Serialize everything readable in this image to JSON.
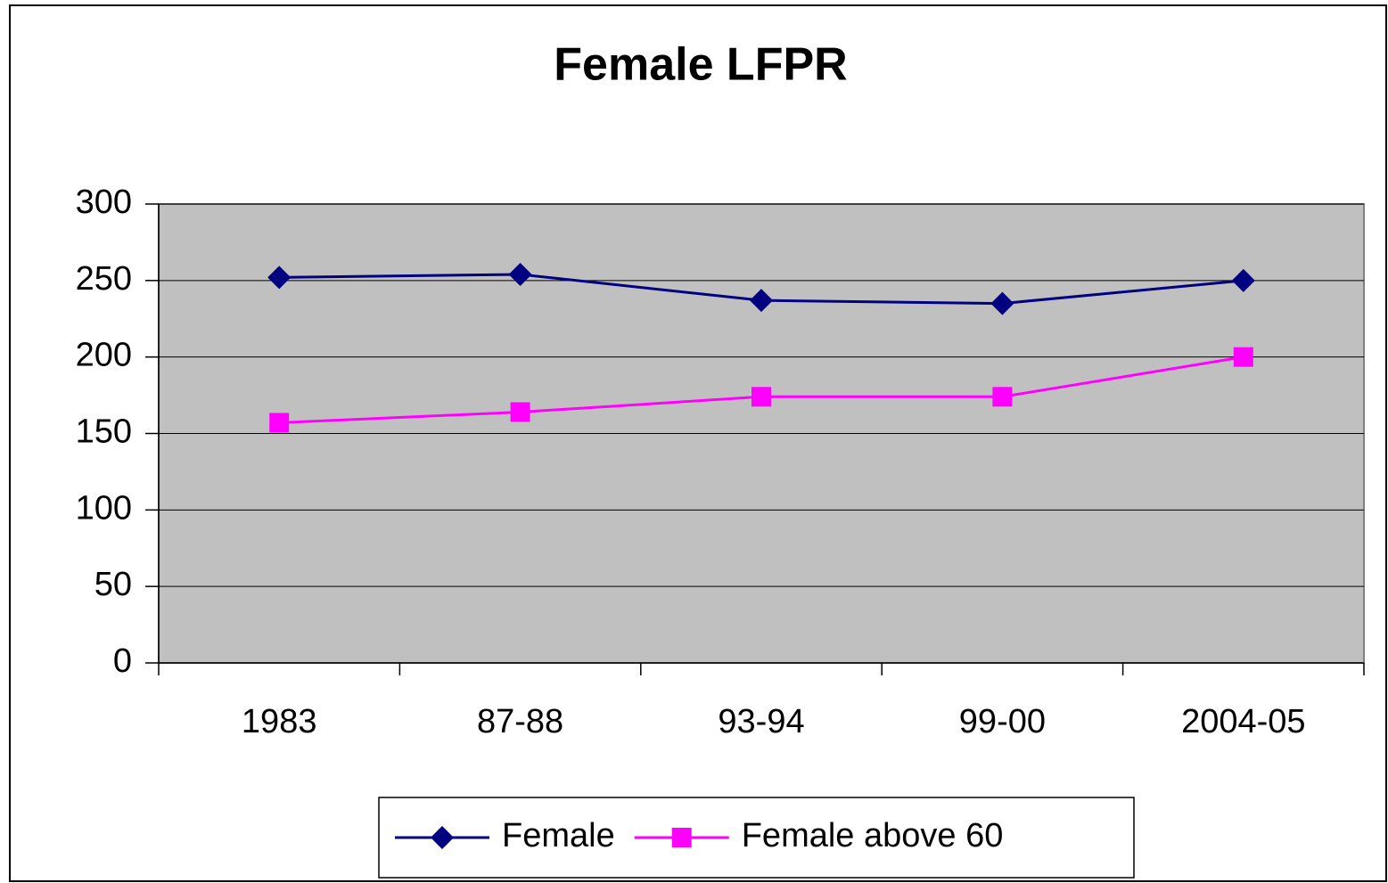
{
  "chart_data": {
    "type": "line",
    "title": "Female LFPR",
    "categories": [
      "1983",
      "87-88",
      "93-94",
      "99-00",
      "2004-05"
    ],
    "series": [
      {
        "name": "Female",
        "color": "#000080",
        "marker": "diamond",
        "values": [
          252,
          254,
          237,
          235,
          250
        ]
      },
      {
        "name": "Female above 60",
        "color": "#ff00ff",
        "marker": "square",
        "values": [
          157,
          164,
          174,
          174,
          200
        ]
      }
    ],
    "ylim": [
      0,
      300
    ],
    "yticks": [
      0,
      50,
      100,
      150,
      200,
      250,
      300
    ],
    "grid": true,
    "plot_background": "#c0c0c0",
    "legend": "bottom"
  }
}
